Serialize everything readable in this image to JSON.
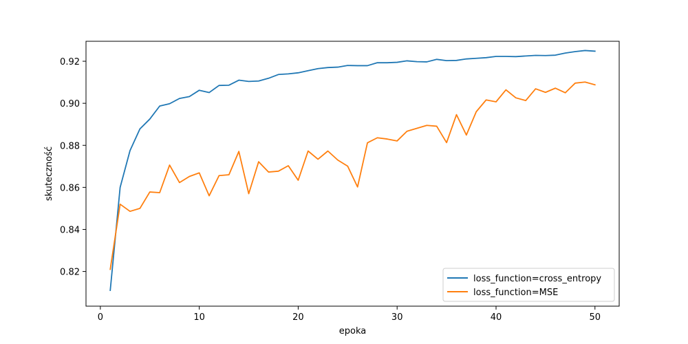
{
  "chart_data": {
    "type": "line",
    "xlabel": "epoka",
    "ylabel": "skuteczność",
    "xlim": [
      -1.45,
      52.45
    ],
    "ylim": [
      0.8035,
      0.9295
    ],
    "xticks": [
      0,
      10,
      20,
      30,
      40,
      50
    ],
    "xtick_labels": [
      "0",
      "10",
      "20",
      "30",
      "40",
      "50"
    ],
    "yticks": [
      0.82,
      0.84,
      0.86,
      0.88,
      0.9,
      0.92
    ],
    "ytick_labels": [
      "0.82",
      "0.84",
      "0.86",
      "0.88",
      "0.90",
      "0.92"
    ],
    "grid": false,
    "legend_position": "lower-right",
    "x": [
      1,
      2,
      3,
      4,
      5,
      6,
      7,
      8,
      9,
      10,
      11,
      12,
      13,
      14,
      15,
      16,
      17,
      18,
      19,
      20,
      21,
      22,
      23,
      24,
      25,
      26,
      27,
      28,
      29,
      30,
      31,
      32,
      33,
      34,
      35,
      36,
      37,
      38,
      39,
      40,
      41,
      42,
      43,
      44,
      45,
      46,
      47,
      48,
      49,
      50
    ],
    "series": [
      {
        "name": "loss_function=cross_entropy",
        "color": "#1f77b4",
        "values": [
          0.811,
          0.86,
          0.8775,
          0.8878,
          0.8925,
          0.8987,
          0.8998,
          0.9023,
          0.9032,
          0.9062,
          0.9051,
          0.9085,
          0.9086,
          0.911,
          0.9104,
          0.9106,
          0.9119,
          0.9137,
          0.914,
          0.9145,
          0.9155,
          0.9165,
          0.917,
          0.9172,
          0.918,
          0.9179,
          0.9179,
          0.9193,
          0.9193,
          0.9195,
          0.9202,
          0.9198,
          0.9197,
          0.9209,
          0.9203,
          0.9204,
          0.9211,
          0.9214,
          0.9217,
          0.9223,
          0.9223,
          0.9222,
          0.9225,
          0.9228,
          0.9227,
          0.9229,
          0.9239,
          0.9246,
          0.9251,
          0.9248
        ]
      },
      {
        "name": "loss_function=MSE",
        "color": "#ff7f0e",
        "values": [
          0.821,
          0.852,
          0.8486,
          0.85,
          0.8578,
          0.8575,
          0.8706,
          0.8623,
          0.8652,
          0.8669,
          0.856,
          0.8656,
          0.866,
          0.8771,
          0.857,
          0.8722,
          0.8673,
          0.8677,
          0.8703,
          0.8634,
          0.8773,
          0.8734,
          0.8773,
          0.873,
          0.8701,
          0.8602,
          0.8812,
          0.8836,
          0.883,
          0.8821,
          0.8867,
          0.8881,
          0.8895,
          0.8891,
          0.8813,
          0.8946,
          0.8849,
          0.896,
          0.9016,
          0.9007,
          0.9064,
          0.9026,
          0.9013,
          0.9069,
          0.9052,
          0.9072,
          0.905,
          0.9096,
          0.9101,
          0.9088
        ]
      }
    ]
  }
}
